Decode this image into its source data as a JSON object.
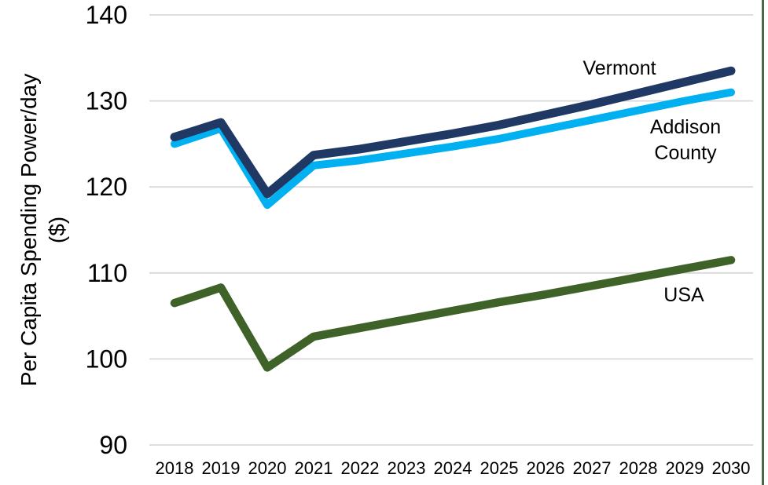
{
  "page": {
    "background_color": "#FFFFFF",
    "edge_stripe_color": "#47684A"
  },
  "chart_data": {
    "type": "line",
    "title": "",
    "xlabel": "",
    "ylabel": "Per Capita Spending Power/day",
    "ylabel_unit": "($)",
    "ylim": [
      90,
      140
    ],
    "yticks": [
      90,
      100,
      110,
      120,
      130,
      140
    ],
    "grid": "horizontal gridlines only",
    "gridline_color": "#D9D9D9",
    "axis_text_color": "#000000",
    "legend_position": "inline labels next to lines",
    "categories": [
      2018,
      2019,
      2020,
      2021,
      2022,
      2023,
      2024,
      2025,
      2026,
      2027,
      2028,
      2029,
      2030
    ],
    "series": [
      {
        "name": "Vermont",
        "color": "#1F3864",
        "values": [
          125.8,
          127.5,
          119.2,
          123.7,
          124.4,
          125.3,
          126.2,
          127.2,
          128.4,
          129.6,
          130.9,
          132.2,
          133.5
        ]
      },
      {
        "name": "Addison County",
        "color": "#00B0F0",
        "values": [
          125.0,
          126.8,
          117.9,
          122.5,
          123.1,
          123.9,
          124.7,
          125.6,
          126.7,
          127.8,
          128.9,
          130.0,
          131.0
        ]
      },
      {
        "name": "USA",
        "color": "#3F6228",
        "values": [
          106.5,
          108.3,
          99.0,
          102.6,
          103.6,
          104.6,
          105.6,
          106.6,
          107.5,
          108.5,
          109.5,
          110.5,
          111.5
        ]
      }
    ]
  }
}
